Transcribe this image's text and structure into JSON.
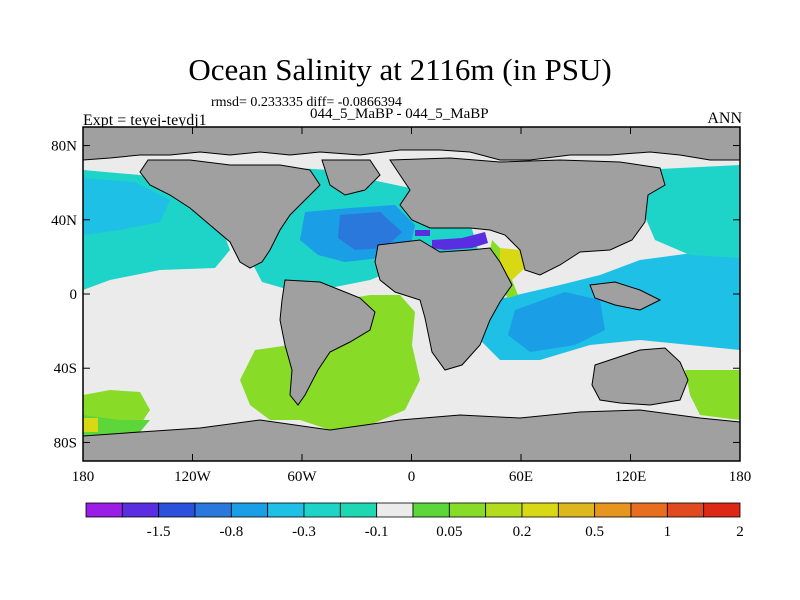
{
  "title": "Ocean Salinity at 2116m (in PSU)",
  "subtitle": "rmsd= 0.233335 diff= -0.0866394",
  "experiment": "Expt = teyej-teydj1",
  "center_title": "044_5_MaBP - 044_5_MaBP",
  "season": "ANN",
  "map": {
    "lon_range": [
      -180,
      180
    ],
    "lat_range": [
      -90,
      90
    ],
    "lon_ticks": [
      {
        "value": -180,
        "label": "180"
      },
      {
        "value": -120,
        "label": "120W"
      },
      {
        "value": -60,
        "label": "60W"
      },
      {
        "value": 0,
        "label": "0"
      },
      {
        "value": 60,
        "label": "60E"
      },
      {
        "value": 120,
        "label": "120E"
      },
      {
        "value": 180,
        "label": "180"
      }
    ],
    "lat_ticks": [
      {
        "value": 80,
        "label": "80N"
      },
      {
        "value": 40,
        "label": "40N"
      },
      {
        "value": 0,
        "label": "0"
      },
      {
        "value": -40,
        "label": "40S"
      },
      {
        "value": -80,
        "label": "80S"
      }
    ]
  },
  "colorbar": {
    "colors": [
      "#9a1ee6",
      "#5a2ee0",
      "#2a50dc",
      "#2a78dc",
      "#1a9ee6",
      "#1ec0e6",
      "#1ed4c8",
      "#1ed8b4",
      "#ebebeb",
      "#5cd63a",
      "#88dc28",
      "#b4dc1e",
      "#d8d814",
      "#dcb81e",
      "#e6961e",
      "#e66e1e",
      "#e04a1e",
      "#dc2814"
    ],
    "labels": [
      {
        "after_box": 2,
        "text": "-1.5"
      },
      {
        "after_box": 4,
        "text": "-0.8"
      },
      {
        "after_box": 6,
        "text": "-0.3"
      },
      {
        "after_box": 8,
        "text": "-0.1"
      },
      {
        "after_box": 10,
        "text": "0.05"
      },
      {
        "after_box": 12,
        "text": "0.2"
      },
      {
        "after_box": 14,
        "text": "0.5"
      },
      {
        "after_box": 16,
        "text": "1"
      },
      {
        "after_box": 18,
        "text": "2"
      }
    ]
  },
  "colors": {
    "land": "#a0a0a0",
    "ocean_default": "#ebebeb"
  }
}
